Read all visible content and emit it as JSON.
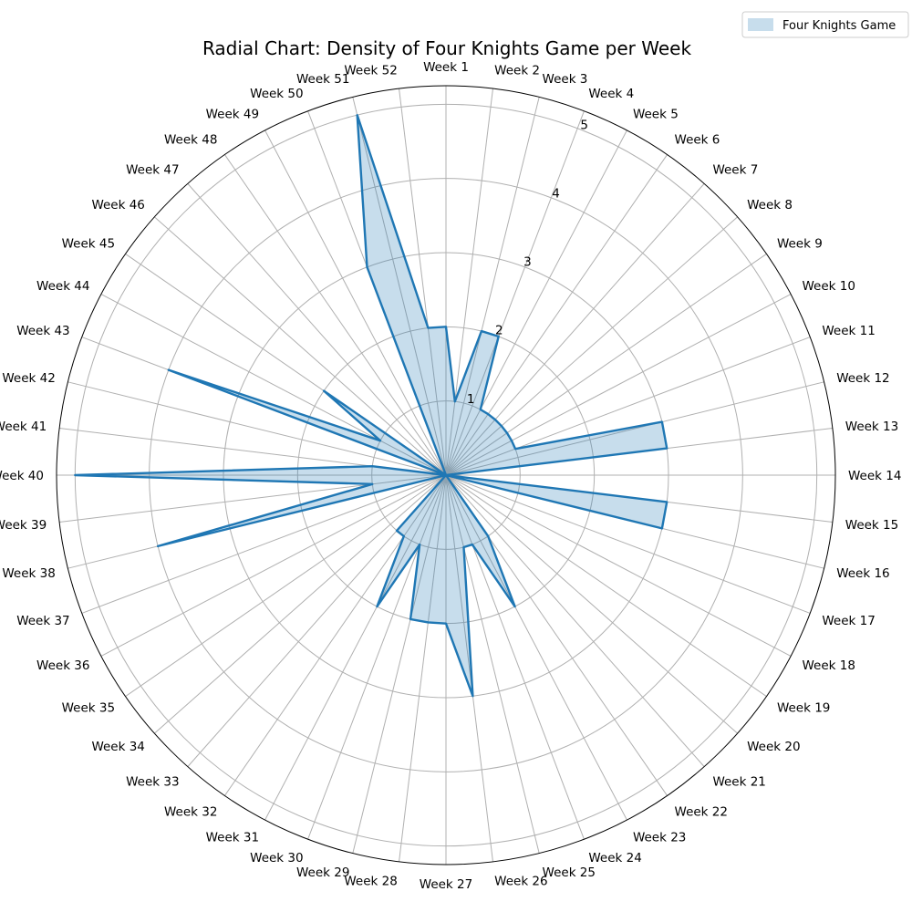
{
  "chart_data": {
    "type": "radar",
    "title": "Radial Chart: Density of Four Knights Game per Week",
    "categories": [
      "Week 1",
      "Week 2",
      "Week 3",
      "Week 4",
      "Week 5",
      "Week 6",
      "Week 7",
      "Week 8",
      "Week 9",
      "Week 10",
      "Week 11",
      "Week 12",
      "Week 13",
      "Week 14",
      "Week 15",
      "Week 16",
      "Week 17",
      "Week 18",
      "Week 19",
      "Week 20",
      "Week 21",
      "Week 22",
      "Week 23",
      "Week 24",
      "Week 25",
      "Week 26",
      "Week 27",
      "Week 28",
      "Week 29",
      "Week 30",
      "Week 31",
      "Week 32",
      "Week 33",
      "Week 34",
      "Week 35",
      "Week 36",
      "Week 37",
      "Week 38",
      "Week 39",
      "Week 40",
      "Week 41",
      "Week 42",
      "Week 43",
      "Week 44",
      "Week 45",
      "Week 46",
      "Week 47",
      "Week 48",
      "Week 49",
      "Week 50",
      "Week 51",
      "Week 52"
    ],
    "series": [
      {
        "name": "Four Knights Game",
        "values": [
          2.0,
          1.0,
          2.0,
          2.0,
          1.0,
          1.0,
          1.0,
          1.0,
          1.0,
          1.0,
          1.0,
          3.0,
          3.0,
          0.0,
          3.0,
          3.0,
          0.0,
          0.0,
          0.0,
          0.0,
          0.0,
          1.0,
          2.0,
          1.0,
          1.0,
          3.0,
          2.0,
          2.0,
          2.0,
          1.0,
          2.0,
          1.0,
          1.0,
          0.0,
          0.0,
          0.0,
          0.0,
          4.0,
          1.0,
          5.0,
          1.0,
          0.0,
          4.0,
          1.0,
          2.0,
          0.0,
          0.0,
          0.0,
          0.0,
          3.0,
          5.0,
          2.0
        ]
      }
    ],
    "rticks": [
      1,
      2,
      3,
      4,
      5
    ],
    "rlim": [
      0,
      5.25
    ],
    "grid": true,
    "legend_position": "top-right",
    "colors": {
      "line": "#1f77b4",
      "fill": "#1f77b4",
      "grid": "#b0b0b0",
      "spine": "#000000"
    }
  }
}
